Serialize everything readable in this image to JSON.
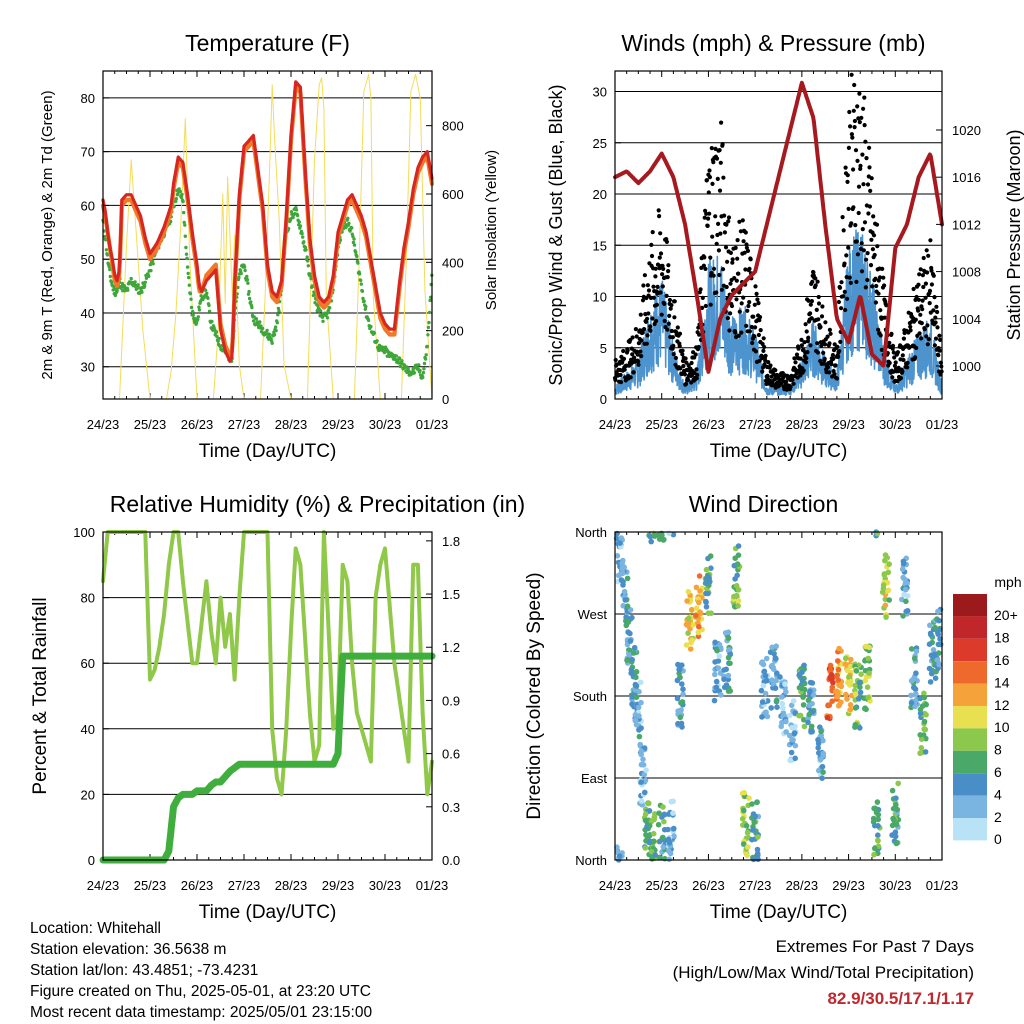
{
  "colors": {
    "temp_2m": "#d62820",
    "temp_9m": "#f07828",
    "dewpoint": "#3fa63a",
    "solar": "#f4dc5a",
    "wind_sonic": "#4d94cf",
    "gust": "#000000",
    "pressure": "#a6191e",
    "rh": "#90c84a",
    "precip": "#3fae3d",
    "extremes_text": "#c0282d"
  },
  "info": {
    "location": "Location: Whitehall",
    "elevation": "Station elevation: 36.5638 m",
    "latlon": "Station lat/lon: 43.4851; -73.4231",
    "created": "Figure created on Thu, 2025-05-01, at 23:20 UTC",
    "recent": "Most recent data timestamp: 2025/05/01 23:15:00"
  },
  "extremes": {
    "line1": "Extremes For Past 7 Days",
    "line2": "(High/Low/Max Wind/Total Precipitation)",
    "values": "82.9/30.5/17.1/1.17"
  },
  "chart_data": [
    {
      "type": "line",
      "title": "Temperature (F)",
      "xlabel": "Time (Day/UTC)",
      "ylabel": "2m & 9m T (Red, Orange) & 2m Td (Green)",
      "y2label": "Solar Insolation (Yellow)",
      "x_ticks": [
        "24/23",
        "25/23",
        "26/23",
        "27/23",
        "28/23",
        "29/23",
        "30/23",
        "01/23"
      ],
      "ylim": [
        24,
        85
      ],
      "y_ticks": [
        30,
        40,
        50,
        60,
        70,
        80
      ],
      "y2lim": [
        0,
        960
      ],
      "y2_ticks": [
        0,
        200,
        400,
        600,
        800
      ],
      "grid": true,
      "x": [
        0,
        0.05,
        0.1,
        0.15,
        0.2,
        0.25,
        0.3,
        0.35,
        0.4,
        0.5,
        0.6,
        0.7,
        0.8,
        0.9,
        1.0,
        1.15,
        1.3,
        1.45,
        1.5,
        1.6,
        1.7,
        1.8,
        1.9,
        2.0,
        2.05,
        2.1,
        2.2,
        2.3,
        2.4,
        2.5,
        2.6,
        2.7,
        2.75,
        2.8,
        2.9,
        3.0,
        3.2,
        3.4,
        3.5,
        3.6,
        3.7,
        3.8,
        3.9,
        4.0,
        4.1,
        4.2,
        4.3,
        4.4,
        4.5,
        4.6,
        4.7,
        4.8,
        4.9,
        5.0,
        5.1,
        5.2,
        5.3,
        5.4,
        5.5,
        5.6,
        5.7,
        5.8,
        5.9,
        6.0,
        6.1,
        6.2,
        6.3,
        6.4,
        6.5,
        6.6,
        6.7,
        6.8,
        6.9,
        7.0
      ],
      "series": [
        {
          "key": "temp_2m",
          "values": [
            61,
            59,
            55,
            52,
            50,
            47,
            46,
            48,
            61,
            62,
            62,
            60,
            58,
            54,
            51,
            53,
            56,
            60,
            64,
            69,
            68,
            62,
            55,
            49,
            45,
            44,
            46,
            47,
            48,
            37,
            33,
            31,
            32,
            45,
            62,
            71,
            73,
            60,
            49,
            44,
            43,
            46,
            58,
            73,
            83,
            82,
            67,
            54,
            47,
            43,
            42,
            43,
            47,
            55,
            58,
            61,
            62,
            60,
            58,
            55,
            50,
            45,
            40,
            38,
            37,
            37,
            45,
            52,
            57,
            63,
            67,
            69,
            70,
            65
          ]
        },
        {
          "key": "temp_9m",
          "values": [
            60,
            58,
            55,
            52,
            49,
            46,
            45,
            47,
            60,
            61,
            61,
            59,
            57,
            53,
            50,
            52,
            55,
            59,
            63,
            68,
            67,
            61,
            54,
            48,
            44,
            44,
            47,
            48,
            49,
            38,
            34,
            32,
            33,
            44,
            61,
            70,
            72,
            59,
            48,
            43,
            42,
            45,
            57,
            72,
            82,
            81,
            66,
            53,
            46,
            42,
            41,
            42,
            46,
            54,
            57,
            60,
            61,
            59,
            57,
            54,
            49,
            44,
            39,
            37,
            36,
            36,
            44,
            51,
            56,
            62,
            66,
            68,
            69,
            64
          ]
        },
        {
          "key": "dewpoint",
          "values": [
            57,
            54,
            50,
            47,
            45,
            44,
            44,
            46,
            45,
            44,
            46,
            45,
            44,
            46,
            48,
            52,
            55,
            58,
            60,
            63,
            61,
            48,
            40,
            38,
            41,
            43,
            44,
            38,
            36,
            34,
            33,
            31,
            32,
            40,
            47,
            49,
            39,
            37,
            36,
            35,
            38,
            45,
            55,
            58,
            59,
            56,
            52,
            47,
            43,
            40,
            39,
            40,
            45,
            52,
            56,
            57,
            55,
            50,
            45,
            40,
            37,
            35,
            33,
            33,
            32,
            32,
            31,
            30,
            29,
            29,
            30,
            28,
            34,
            47
          ]
        }
      ],
      "solar": {
        "x": [
          0,
          0.35,
          0.5,
          0.6,
          0.7,
          0.85,
          1.0,
          1.35,
          1.45,
          1.55,
          1.65,
          1.75,
          1.85,
          2.0,
          2.35,
          2.45,
          2.55,
          2.6,
          2.65,
          2.75,
          2.8,
          2.9,
          3.0,
          3.35,
          3.45,
          3.55,
          3.6,
          3.65,
          3.75,
          3.85,
          4.0,
          4.35,
          4.5,
          4.6,
          4.65,
          4.7,
          4.75,
          4.9,
          5.0,
          5.35,
          5.45,
          5.55,
          5.65,
          5.7,
          5.75,
          5.9,
          6.0,
          6.35,
          6.45,
          6.55,
          6.65,
          6.75,
          6.85,
          7.0
        ],
        "values": [
          0,
          0,
          450,
          700,
          500,
          200,
          0,
          0,
          80,
          250,
          500,
          820,
          400,
          0,
          0,
          200,
          600,
          280,
          650,
          300,
          480,
          100,
          0,
          0,
          300,
          700,
          920,
          760,
          520,
          100,
          0,
          0,
          700,
          920,
          940,
          850,
          300,
          0,
          0,
          0,
          400,
          900,
          950,
          880,
          300,
          0,
          0,
          0,
          400,
          900,
          950,
          880,
          320,
          0
        ]
      }
    },
    {
      "type": "scatter",
      "title": "Winds (mph) & Pressure (mb)",
      "xlabel": "Time (Day/UTC)",
      "ylabel": "Sonic/Prop Wind & Gust (Blue, Black)",
      "y2label": "Station Pressure (Maroon)",
      "x_ticks": [
        "24/23",
        "25/23",
        "26/23",
        "27/23",
        "28/23",
        "29/23",
        "30/23",
        "01/23"
      ],
      "ylim": [
        0,
        32
      ],
      "y_ticks": [
        0,
        5,
        10,
        15,
        20,
        25,
        30
      ],
      "y2lim": [
        997.2,
        1025
      ],
      "y2_ticks": [
        1000,
        1004,
        1008,
        1012,
        1016,
        1020
      ],
      "grid": true,
      "x": [
        0,
        0.25,
        0.5,
        0.75,
        1.0,
        1.25,
        1.5,
        1.75,
        2.0,
        2.25,
        2.5,
        2.75,
        3.0,
        3.25,
        3.5,
        3.75,
        4.0,
        4.25,
        4.5,
        4.75,
        5.0,
        5.25,
        5.5,
        5.75,
        6.0,
        6.25,
        6.5,
        6.75,
        7.0
      ],
      "series": [
        {
          "key": "wind_sonic",
          "name": "Sonic/Prop Wind",
          "values": [
            1,
            2,
            3,
            7,
            9,
            4,
            1,
            2,
            10,
            11,
            6,
            7,
            5,
            1,
            1,
            1,
            3,
            6,
            3,
            2,
            11,
            13,
            9,
            4,
            1,
            3,
            5,
            6,
            1
          ]
        },
        {
          "key": "gust",
          "name": "Gust",
          "values": [
            3,
            4,
            6,
            12,
            15,
            8,
            3,
            4,
            20,
            22,
            12,
            14,
            9,
            3,
            2,
            2,
            5,
            11,
            6,
            4,
            24,
            26,
            17,
            9,
            3,
            6,
            10,
            12,
            3
          ]
        },
        {
          "key": "pressure",
          "name": "Station Pressure",
          "values": [
            1016,
            1016.5,
            1015.5,
            1016.5,
            1018,
            1016,
            1012,
            1006,
            999.5,
            1004,
            1006,
            1007,
            1008,
            1012,
            1016,
            1020,
            1024,
            1021,
            1012,
            1004,
            1002,
            1006,
            1001,
            1000,
            1010,
            1012,
            1016,
            1018,
            1012
          ]
        }
      ]
    },
    {
      "type": "line",
      "title": "Relative Humidity (%) & Precipitation (in)",
      "xlabel": "Time (Day/UTC)",
      "ylabel": "Percent & Total Rainfall",
      "x_ticks": [
        "24/23",
        "25/23",
        "26/23",
        "27/23",
        "28/23",
        "29/23",
        "30/23",
        "01/23"
      ],
      "ylim": [
        0,
        100
      ],
      "y_ticks": [
        0,
        20,
        40,
        60,
        80,
        100
      ],
      "y2lim": [
        0,
        1.85
      ],
      "y2_ticks": [
        "0.0",
        "0.3",
        "0.6",
        "0.9",
        "1.2",
        "1.5",
        "1.8"
      ],
      "grid": true,
      "x": [
        0,
        0.1,
        0.2,
        0.4,
        0.5,
        0.9,
        1.0,
        1.1,
        1.2,
        1.3,
        1.4,
        1.5,
        1.6,
        1.7,
        1.9,
        2.0,
        2.2,
        2.3,
        2.4,
        2.5,
        2.6,
        2.7,
        2.8,
        2.9,
        3.0,
        3.2,
        3.4,
        3.5,
        3.6,
        3.7,
        3.8,
        3.9,
        4.0,
        4.1,
        4.2,
        4.4,
        4.5,
        4.6,
        4.7,
        4.8,
        4.9,
        5.0,
        5.1,
        5.2,
        5.3,
        5.4,
        5.5,
        5.6,
        5.7,
        5.8,
        5.9,
        6.0,
        6.2,
        6.4,
        6.5,
        6.6,
        6.7,
        6.8,
        6.9,
        7.0
      ],
      "series": [
        {
          "key": "rh",
          "name": "Relative Humidity",
          "values": [
            85,
            100,
            100,
            100,
            100,
            100,
            55,
            58,
            65,
            75,
            90,
            100,
            100,
            85,
            60,
            60,
            85,
            70,
            60,
            80,
            65,
            75,
            55,
            80,
            100,
            100,
            100,
            100,
            40,
            25,
            20,
            40,
            70,
            95,
            90,
            45,
            30,
            35,
            100,
            70,
            40,
            45,
            90,
            85,
            60,
            45,
            40,
            35,
            30,
            80,
            90,
            95,
            60,
            40,
            30,
            90,
            90,
            45,
            20,
            30
          ]
        },
        {
          "key": "precip",
          "name": "Total Rainfall",
          "values": [
            0,
            0,
            0,
            0,
            0,
            0,
            0,
            0,
            0,
            0,
            0.05,
            0.3,
            0.35,
            0.37,
            0.37,
            0.39,
            0.39,
            0.42,
            0.44,
            0.44,
            0.47,
            0.5,
            0.52,
            0.54,
            0.54,
            0.54,
            0.54,
            0.54,
            0.54,
            0.54,
            0.54,
            0.54,
            0.54,
            0.54,
            0.54,
            0.54,
            0.54,
            0.54,
            0.54,
            0.54,
            0.54,
            0.6,
            1.15,
            1.15,
            1.15,
            1.15,
            1.15,
            1.15,
            1.15,
            1.15,
            1.15,
            1.15,
            1.15,
            1.15,
            1.15,
            1.15,
            1.15,
            1.15,
            1.15,
            1.15
          ]
        }
      ]
    },
    {
      "type": "scatter",
      "title": "Wind Direction",
      "xlabel": "Time (Day/UTC)",
      "ylabel": "Direction (Colored By Speed)",
      "x_ticks": [
        "24/23",
        "25/23",
        "26/23",
        "27/23",
        "28/23",
        "29/23",
        "30/23",
        "01/23"
      ],
      "y_ticks": [
        "North",
        "East",
        "South",
        "West",
        "North"
      ],
      "ylim": [
        0,
        360
      ],
      "grid": true,
      "colorbar": {
        "title": "mph",
        "labels": [
          "20+",
          "18",
          "16",
          "14",
          "12",
          "10",
          "8",
          "6",
          "4",
          "2",
          "0"
        ],
        "colors": [
          "#9c1a1c",
          "#c0262a",
          "#dc3a2a",
          "#ee6a2c",
          "#f6a23a",
          "#e8e050",
          "#8cc84c",
          "#4aa868",
          "#4a8ec8",
          "#7ab4e0",
          "#b8e2f6"
        ]
      },
      "x": [
        0.1,
        0.2,
        0.3,
        0.4,
        0.5,
        0.6,
        0.7,
        0.8,
        1.0,
        1.2,
        1.4,
        1.6,
        1.8,
        2.0,
        2.2,
        2.4,
        2.6,
        2.8,
        3.0,
        3.2,
        3.4,
        3.6,
        3.8,
        4.0,
        4.2,
        4.4,
        4.6,
        4.8,
        5.0,
        5.2,
        5.4,
        5.6,
        5.8,
        6.0,
        6.2,
        6.4,
        6.6,
        6.8,
        6.9
      ],
      "direction": [
        340,
        300,
        250,
        200,
        160,
        90,
        40,
        20,
        25,
        30,
        180,
        260,
        280,
        300,
        210,
        220,
        310,
        40,
        30,
        190,
        200,
        170,
        140,
        180,
        160,
        120,
        180,
        200,
        190,
        180,
        200,
        30,
        300,
        50,
        300,
        200,
        150,
        230,
        240
      ],
      "speed": [
        2,
        3,
        4,
        4,
        3,
        2,
        6,
        7,
        5,
        2,
        4,
        10,
        11,
        6,
        3,
        4,
        7,
        8,
        5,
        2,
        3,
        2,
        2,
        6,
        4,
        3,
        15,
        12,
        10,
        7,
        8,
        6,
        9,
        5,
        3,
        3,
        6,
        5,
        4
      ]
    }
  ]
}
